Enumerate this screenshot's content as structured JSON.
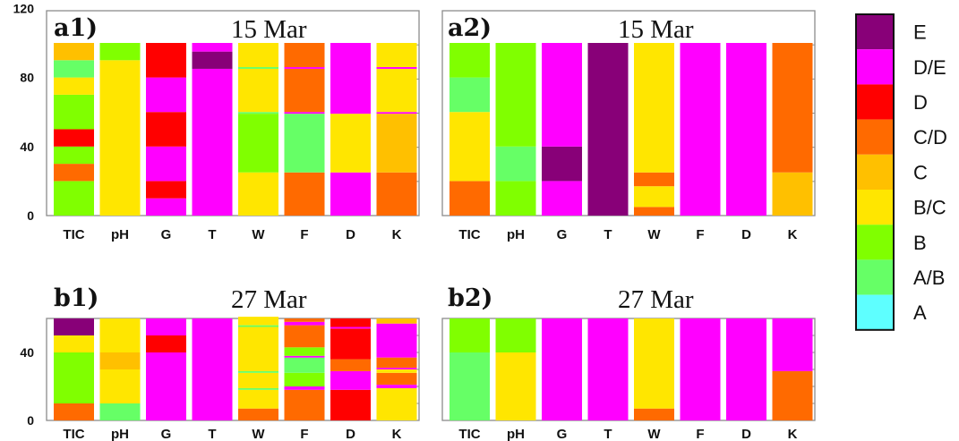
{
  "legend": {
    "grades": [
      "E",
      "D/E",
      "D",
      "C/D",
      "C",
      "B/C",
      "B",
      "A/B",
      "A"
    ],
    "colors": {
      "E": "#880078",
      "D/E": "#ff00ff",
      "D": "#ff0000",
      "C/D": "#ff6a00",
      "C": "#ffc000",
      "B/C": "#ffe600",
      "B": "#80ff00",
      "A/B": "#66ff66",
      "A": "#5effff"
    },
    "border": "#111111"
  },
  "chart_data": [
    {
      "type": "bar",
      "stacked": true,
      "label": "a1)",
      "title": "15 Mar",
      "categories": [
        "TIC",
        "pH",
        "G",
        "T",
        "W",
        "F",
        "D",
        "K"
      ],
      "ylim": [
        0,
        120
      ],
      "yticks": [
        "0",
        "40",
        "80",
        "120"
      ],
      "segments": [
        [
          [
            "B",
            20
          ],
          [
            "C/D",
            10
          ],
          [
            "B",
            10
          ],
          [
            "D",
            10
          ],
          [
            "B",
            20
          ],
          [
            "B/C",
            10
          ],
          [
            "A/B",
            10
          ],
          [
            "C",
            10
          ]
        ],
        [
          [
            "B/C",
            90
          ],
          [
            "B",
            10
          ]
        ],
        [
          [
            "D/E",
            10
          ],
          [
            "D",
            10
          ],
          [
            "D/E",
            20
          ],
          [
            "D",
            20
          ],
          [
            "D/E",
            20
          ],
          [
            "D",
            20
          ]
        ],
        [
          [
            "D/E",
            85
          ],
          [
            "E",
            10
          ],
          [
            "D/E",
            5
          ]
        ],
        [
          [
            "B/C",
            25
          ],
          [
            "B",
            34
          ],
          [
            "A/B",
            1
          ],
          [
            "B/C",
            25
          ],
          [
            "A/B",
            1
          ],
          [
            "B/C",
            14
          ]
        ],
        [
          [
            "C/D",
            25
          ],
          [
            "A/B",
            34
          ],
          [
            "D/E",
            1
          ],
          [
            "C/D",
            25
          ],
          [
            "D/E",
            1
          ],
          [
            "C/D",
            14
          ]
        ],
        [
          [
            "D/E",
            25
          ],
          [
            "B/C",
            34
          ],
          [
            "D/E",
            41
          ]
        ],
        [
          [
            "C/D",
            25
          ],
          [
            "C",
            34
          ],
          [
            "D/E",
            1
          ],
          [
            "B/C",
            25
          ],
          [
            "D/E",
            1
          ],
          [
            "B/C",
            14
          ]
        ]
      ]
    },
    {
      "type": "bar",
      "stacked": true,
      "label": "a2)",
      "title": "15 Mar",
      "categories": [
        "TIC",
        "pH",
        "G",
        "T",
        "W",
        "F",
        "D",
        "K"
      ],
      "ylim": [
        0,
        120
      ],
      "yticks": [],
      "segments": [
        [
          [
            "C/D",
            20
          ],
          [
            "B/C",
            40
          ],
          [
            "A/B",
            20
          ],
          [
            "B",
            20
          ]
        ],
        [
          [
            "B",
            20
          ],
          [
            "A/B",
            20
          ],
          [
            "B",
            60
          ]
        ],
        [
          [
            "D/E",
            20
          ],
          [
            "E",
            20
          ],
          [
            "D/E",
            60
          ]
        ],
        [
          [
            "E",
            100
          ]
        ],
        [
          [
            "C/D",
            5
          ],
          [
            "B/C",
            12
          ],
          [
            "C/D",
            8
          ],
          [
            "B/C",
            75
          ]
        ],
        [
          [
            "D/E",
            100
          ]
        ],
        [
          [
            "D/E",
            100
          ]
        ],
        [
          [
            "C",
            25
          ],
          [
            "C/D",
            75
          ]
        ]
      ]
    },
    {
      "type": "bar",
      "stacked": true,
      "label": "b1)",
      "title": "27 Mar",
      "categories": [
        "TIC",
        "pH",
        "G",
        "T",
        "W",
        "F",
        "D",
        "K"
      ],
      "ylim": [
        0,
        60
      ],
      "yticks": [
        "0",
        "40"
      ],
      "segments": [
        [
          [
            "C/D",
            10
          ],
          [
            "B",
            30
          ],
          [
            "B/C",
            10
          ],
          [
            "E",
            10
          ]
        ],
        [
          [
            "A/B",
            10
          ],
          [
            "B/C",
            20
          ],
          [
            "C",
            10
          ],
          [
            "B/C",
            20
          ]
        ],
        [
          [
            "D/E",
            40
          ],
          [
            "D",
            10
          ],
          [
            "D/E",
            10
          ]
        ],
        [
          [
            "D/E",
            60
          ]
        ],
        [
          [
            "C/D",
            7
          ],
          [
            "B/C",
            11
          ],
          [
            "A/B",
            1
          ],
          [
            "B/C",
            9
          ],
          [
            "A/B",
            1
          ],
          [
            "B/C",
            26
          ],
          [
            "A/B",
            1
          ],
          [
            "B/C",
            5
          ]
        ],
        [
          [
            "C/D",
            18
          ],
          [
            "D/E",
            2
          ],
          [
            "B",
            8
          ],
          [
            "A/B",
            9
          ],
          [
            "D/E",
            1
          ],
          [
            "B",
            5
          ],
          [
            "C/D",
            13
          ],
          [
            "D/E",
            2
          ],
          [
            "C/D",
            2
          ]
        ],
        [
          [
            "D",
            18
          ],
          [
            "D/E",
            11
          ],
          [
            "C/D",
            7
          ],
          [
            "D",
            18
          ],
          [
            "D/E",
            1
          ],
          [
            "D",
            5
          ]
        ],
        [
          [
            "B/C",
            19
          ],
          [
            "D/E",
            2
          ],
          [
            "C/D",
            7
          ],
          [
            "B/C",
            2
          ],
          [
            "D/E",
            1
          ],
          [
            "C/D",
            6
          ],
          [
            "D/E",
            20
          ],
          [
            "C",
            3
          ]
        ]
      ]
    },
    {
      "type": "bar",
      "stacked": true,
      "label": "b2)",
      "title": "27 Mar",
      "categories": [
        "TIC",
        "pH",
        "G",
        "T",
        "W",
        "F",
        "D",
        "K"
      ],
      "ylim": [
        0,
        60
      ],
      "yticks": [],
      "segments": [
        [
          [
            "A/B",
            40
          ],
          [
            "B",
            20
          ]
        ],
        [
          [
            "B/C",
            40
          ],
          [
            "B",
            20
          ]
        ],
        [
          [
            "D/E",
            60
          ]
        ],
        [
          [
            "D/E",
            60
          ]
        ],
        [
          [
            "C/D",
            7
          ],
          [
            "B/C",
            53
          ]
        ],
        [
          [
            "D/E",
            60
          ]
        ],
        [
          [
            "D/E",
            60
          ]
        ],
        [
          [
            "C/D",
            29
          ],
          [
            "D/E",
            31
          ]
        ]
      ]
    }
  ]
}
